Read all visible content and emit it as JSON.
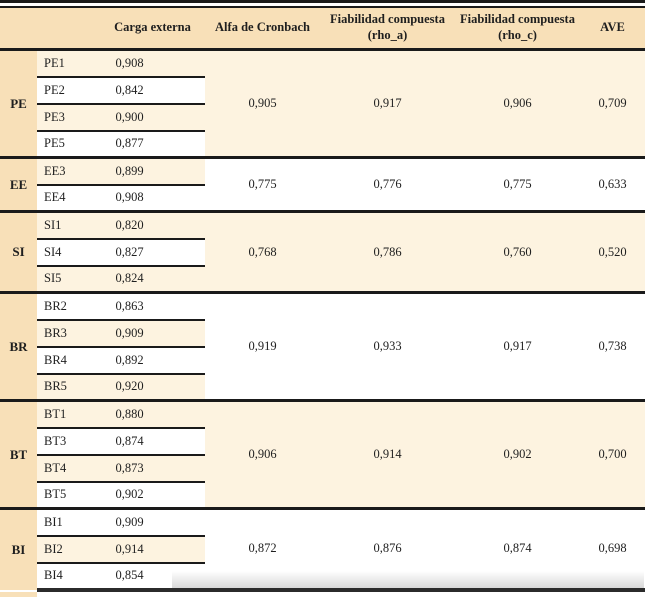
{
  "palette": {
    "tan_bg": "#f8e0b8",
    "cream_bg": "#fdf3e0",
    "line_color": "#1a1a1a",
    "text_color": "#1f1f1f"
  },
  "header": {
    "blank1": "",
    "blank2": "",
    "carga": "Carga externa",
    "alfa": "Alfa de Cronbach",
    "fiabilidad_a": {
      "line1": "Fiabilidad compuesta",
      "line2": "(rho_a)"
    },
    "fiabilidad_c": {
      "line1": "Fiabilidad compuesta",
      "line2": "(rho_c)"
    },
    "ave": "AVE"
  },
  "groups": [
    {
      "label": "PE",
      "alfa": "0,905",
      "rho_a": "0,917",
      "rho_c": "0,906",
      "ave": "0,709",
      "stats_shaded": true,
      "items": [
        {
          "name": "PE1",
          "carga": "0,908",
          "shaded": true
        },
        {
          "name": "PE2",
          "carga": "0,842",
          "shaded": false
        },
        {
          "name": "PE3",
          "carga": "0,900",
          "shaded": true
        },
        {
          "name": "PE5",
          "carga": "0,877",
          "shaded": false
        }
      ]
    },
    {
      "label": "EE",
      "alfa": "0,775",
      "rho_a": "0,776",
      "rho_c": "0,775",
      "ave": "0,633",
      "stats_shaded": false,
      "items": [
        {
          "name": "EE3",
          "carga": "0,899",
          "shaded": true
        },
        {
          "name": "EE4",
          "carga": "0,908",
          "shaded": false
        }
      ]
    },
    {
      "label": "SI",
      "alfa": "0,768",
      "rho_a": "0,786",
      "rho_c": "0,760",
      "ave": "0,520",
      "stats_shaded": true,
      "items": [
        {
          "name": "SI1",
          "carga": "0,820",
          "shaded": true
        },
        {
          "name": "SI4",
          "carga": "0,827",
          "shaded": false
        },
        {
          "name": "SI5",
          "carga": "0,824",
          "shaded": true
        }
      ]
    },
    {
      "label": "BR",
      "alfa": "0,919",
      "rho_a": "0,933",
      "rho_c": "0,917",
      "ave": "0,738",
      "stats_shaded": false,
      "items": [
        {
          "name": "BR2",
          "carga": "0,863",
          "shaded": false
        },
        {
          "name": "BR3",
          "carga": "0,909",
          "shaded": true
        },
        {
          "name": "BR4",
          "carga": "0,892",
          "shaded": false
        },
        {
          "name": "BR5",
          "carga": "0,920",
          "shaded": true
        }
      ]
    },
    {
      "label": "BT",
      "alfa": "0,906",
      "rho_a": "0,914",
      "rho_c": "0,902",
      "ave": "0,700",
      "stats_shaded": true,
      "items": [
        {
          "name": "BT1",
          "carga": "0,880",
          "shaded": true
        },
        {
          "name": "BT3",
          "carga": "0,874",
          "shaded": false
        },
        {
          "name": "BT4",
          "carga": "0,873",
          "shaded": true
        },
        {
          "name": "BT5",
          "carga": "0,902",
          "shaded": false
        }
      ]
    },
    {
      "label": "BI",
      "alfa": "0,872",
      "rho_a": "0,876",
      "rho_c": "0,874",
      "ave": "0,698",
      "stats_shaded": false,
      "items": [
        {
          "name": "BI1",
          "carga": "0,909",
          "shaded": false
        },
        {
          "name": "BI2",
          "carga": "0,914",
          "shaded": true
        },
        {
          "name": "BI4",
          "carga": "0,854",
          "shaded": false
        }
      ]
    }
  ]
}
